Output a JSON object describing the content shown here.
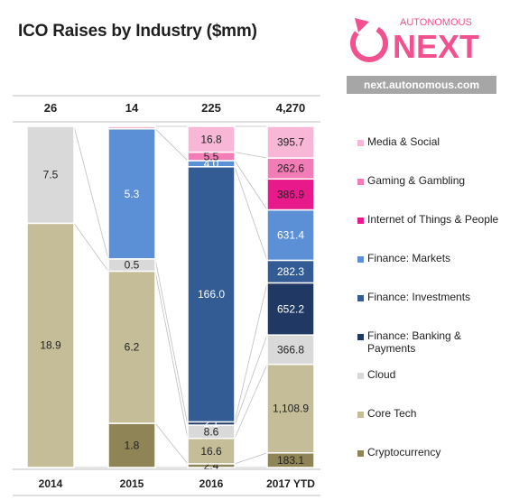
{
  "title": "ICO Raises by Industry ($mm)",
  "logo": {
    "top_text": "AUTONOMOUS",
    "main_text": "NEXT",
    "url": "next.autonomous.com",
    "color": "#f2518f"
  },
  "chart_data": {
    "type": "bar",
    "stacked": true,
    "normalized": true,
    "categories": [
      "2014",
      "2015",
      "2016",
      "2017 YTD"
    ],
    "totals": [
      "26",
      "14",
      "225",
      "4,270"
    ],
    "series": [
      {
        "name": "Cryptocurrency",
        "color": "#8f8456",
        "values": [
          null,
          1.8,
          2.4,
          183.1
        ],
        "labels": [
          "",
          "1.8",
          "2.4",
          "183.1"
        ],
        "label_color": "#222222"
      },
      {
        "name": "Core Tech",
        "color": "#c4bd97",
        "values": [
          18.9,
          6.2,
          16.6,
          1108.9
        ],
        "labels": [
          "18.9",
          "6.2",
          "16.6",
          "1,108.9"
        ],
        "label_color": "#222222"
      },
      {
        "name": "Cloud",
        "color": "#d9d9d9",
        "values": [
          7.5,
          0.5,
          8.6,
          366.8
        ],
        "labels": [
          "7.5",
          "0.5",
          "8.6",
          "366.8"
        ],
        "label_color": "#222222"
      },
      {
        "name": "Finance: Banking & Payments",
        "color": "#1f3864",
        "values": [
          null,
          null,
          2.1,
          652.2
        ],
        "labels": [
          "",
          "",
          "2.1",
          "652.2"
        ],
        "label_color": "#ffffff"
      },
      {
        "name": "Finance: Investments",
        "color": "#335c94",
        "values": [
          null,
          null,
          166.0,
          282.3
        ],
        "labels": [
          "",
          "",
          "166.0",
          "282.3"
        ],
        "label_color": "#ffffff"
      },
      {
        "name": "Finance: Markets",
        "color": "#5b8fd6",
        "values": [
          null,
          5.3,
          4.0,
          631.4
        ],
        "labels": [
          "",
          "5.3",
          "4.0",
          "631.4"
        ],
        "label_color": "#ffffff"
      },
      {
        "name": "Internet of Things & People",
        "color": "#e8198b",
        "values": [
          null,
          null,
          null,
          386.9
        ],
        "labels": [
          "",
          "",
          "",
          "386.9"
        ],
        "label_color": "#222222"
      },
      {
        "name": "Gaming & Gambling",
        "color": "#f27cb5",
        "values": [
          null,
          null,
          5.5,
          262.6
        ],
        "labels": [
          "",
          "",
          "5.5",
          "262.6"
        ],
        "label_color": "#222222"
      },
      {
        "name": "Media & Social",
        "color": "#f9b7d8",
        "values": [
          null,
          0.1,
          16.8,
          395.7
        ],
        "labels": [
          "",
          "",
          "16.8",
          "395.7"
        ],
        "label_color": "#222222"
      }
    ],
    "legend_position": "right",
    "legend_order": [
      "Media & Social",
      "Gaming & Gambling",
      "Internet of Things & People",
      "Finance: Markets",
      "Finance: Investments",
      "Finance: Banking & Payments",
      "Cloud",
      "Core Tech",
      "Cryptocurrency"
    ],
    "grid": false
  }
}
